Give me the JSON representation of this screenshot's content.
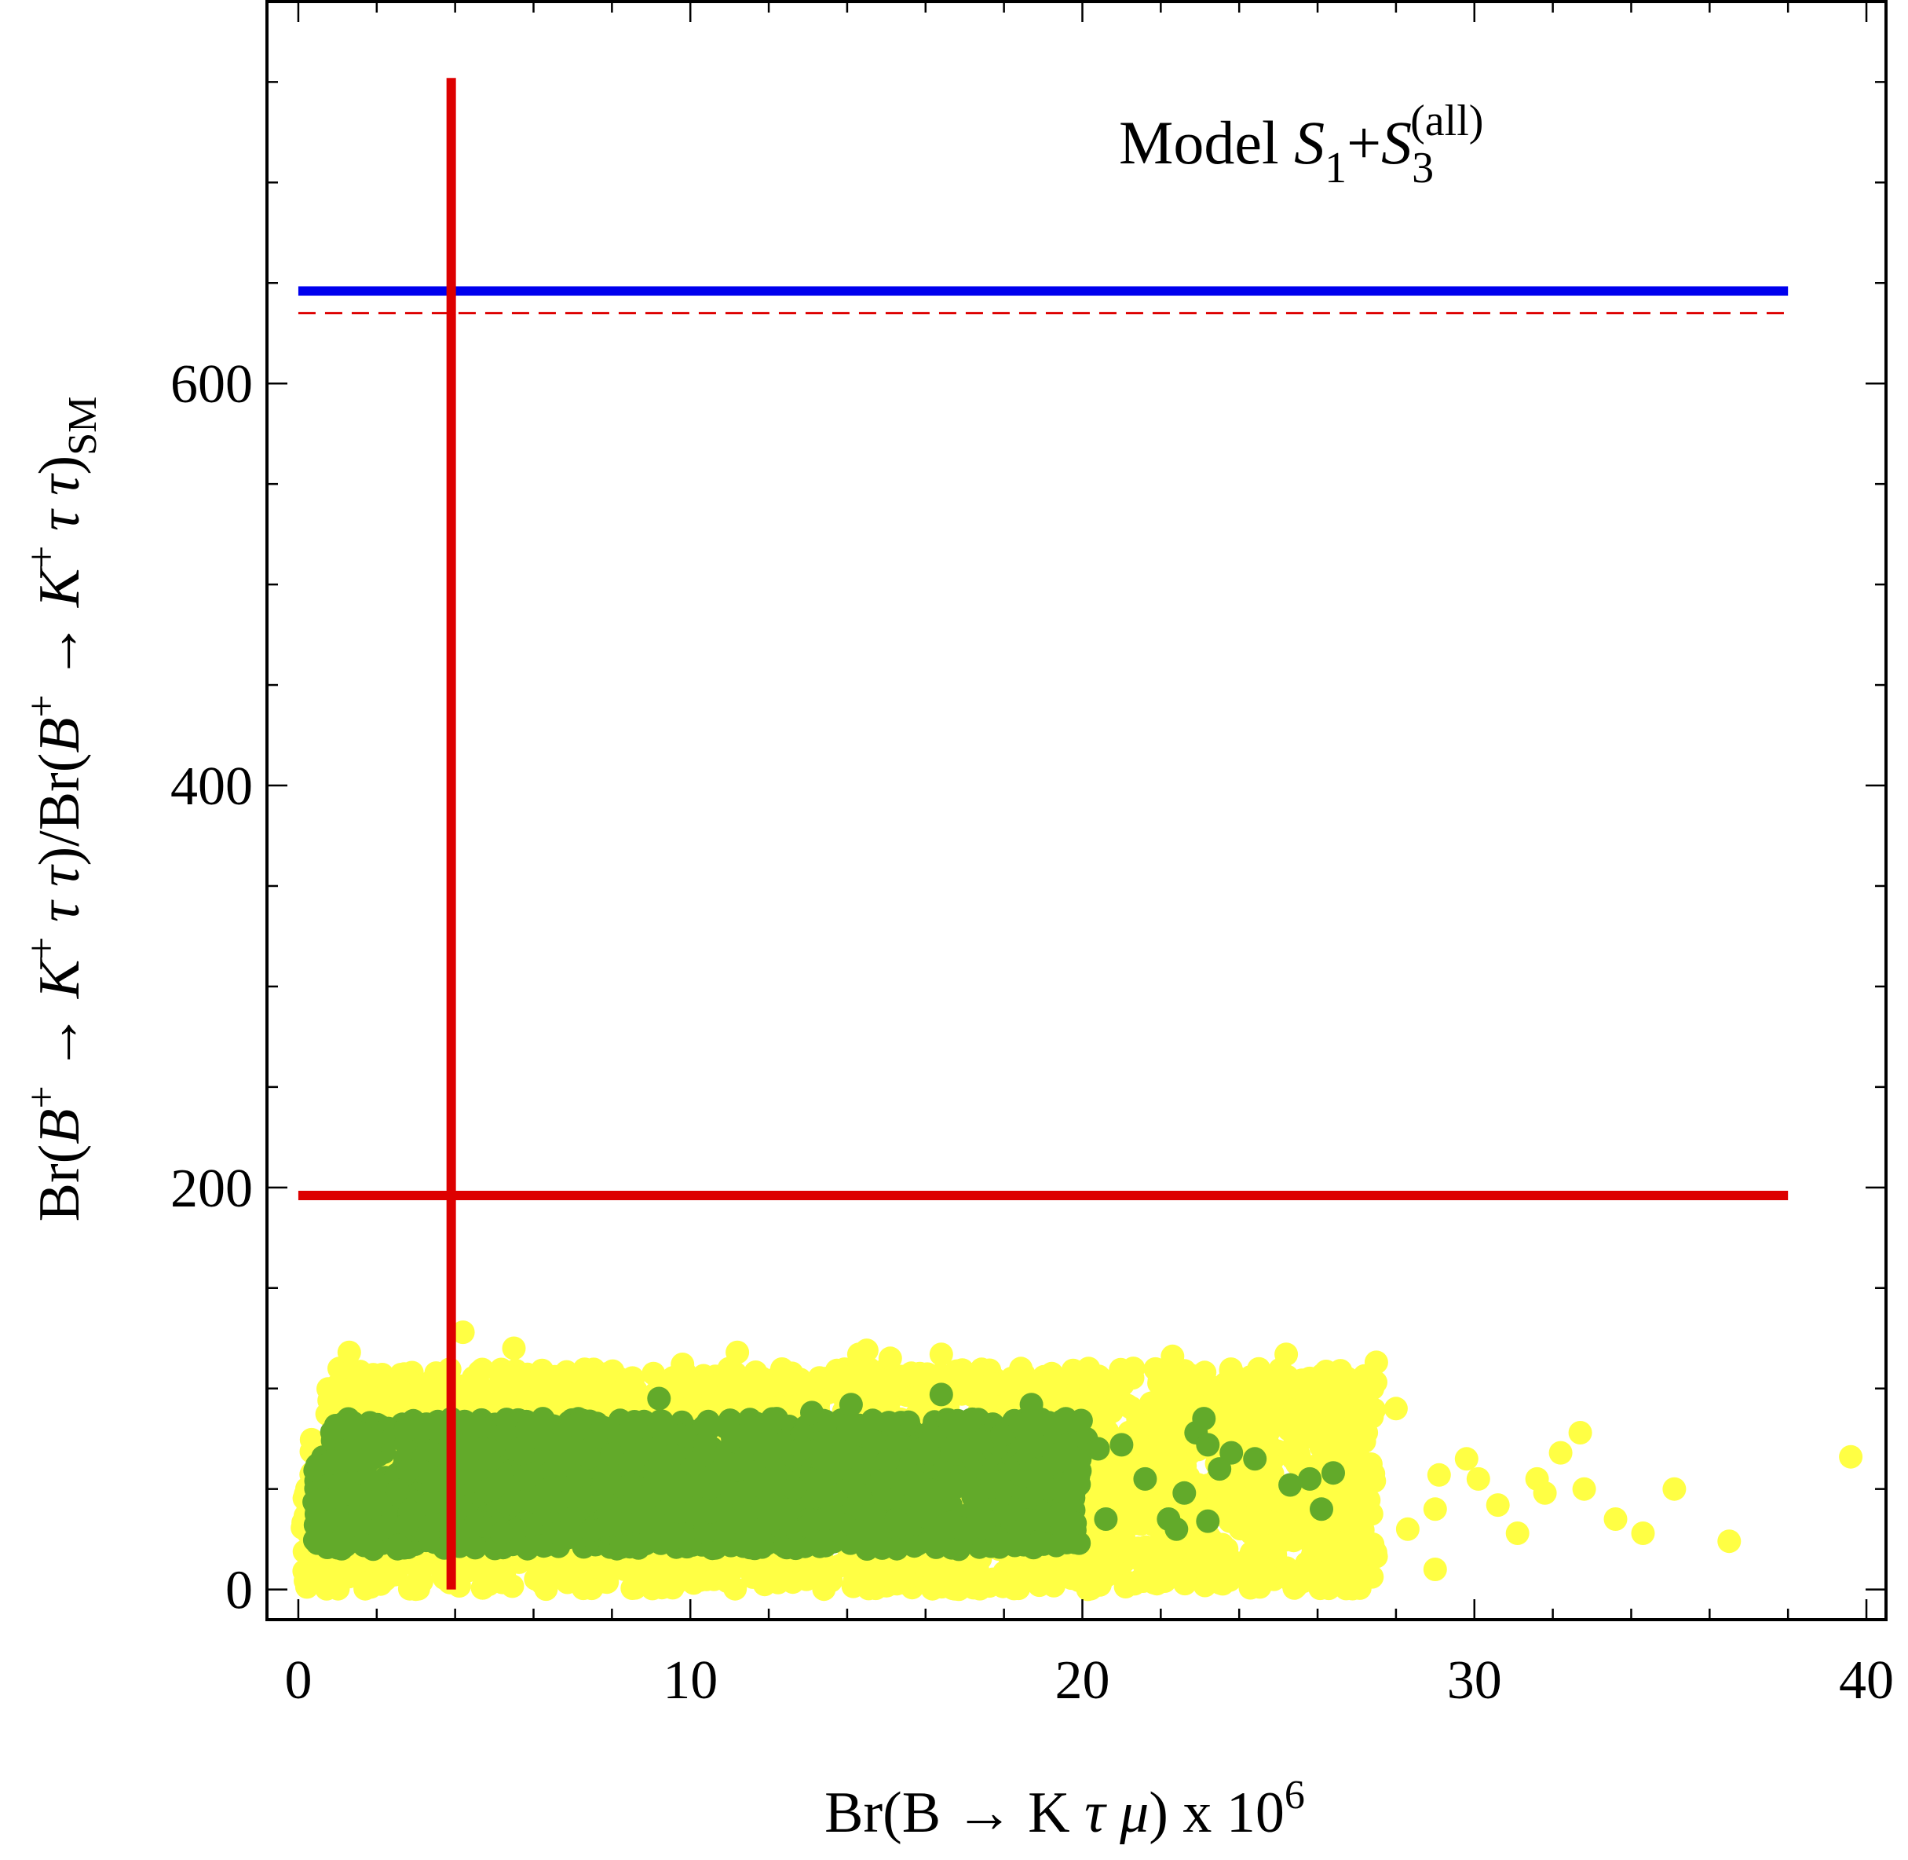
{
  "chart_data": {
    "type": "scatter",
    "title": "",
    "annotation": {
      "prefix": "Model ",
      "s1": "S",
      "s1_sub": "1",
      "plus": "+",
      "s3": "S",
      "s3_sub": "3",
      "s3_sup": "(all)"
    },
    "xlabel": {
      "pre": "Br(B → K ",
      "tau": "τ",
      "mu": "μ",
      "post": ") x 10",
      "exp": "6"
    },
    "ylabel": {
      "p1": "Br(",
      "B1": "B",
      "sup1": "+",
      "p2": " → ",
      "K1": "K",
      "sup2": "+",
      "tt1": " τ τ",
      "p3": ")/Br(",
      "B2": "B",
      "sup3": "+",
      "p4": " → ",
      "K2": "K",
      "sup4": "+",
      "tt2": " τ τ",
      "p5": ")",
      "sub": "SM"
    },
    "xlim": [
      -0.8,
      40.5
    ],
    "ylim": [
      -15,
      790
    ],
    "x_ticks": [
      0,
      10,
      20,
      30,
      40
    ],
    "x_tick_labels": [
      "0",
      "10",
      "20",
      "30",
      "40"
    ],
    "y_ticks": [
      0,
      200,
      400,
      600
    ],
    "y_tick_labels": [
      "0",
      "200",
      "400",
      "600"
    ],
    "x_minor_step": 2,
    "y_minor_step": 50,
    "grid": false,
    "reference_lines": [
      {
        "name": "blue-horizontal-bound",
        "orientation": "horizontal",
        "value": 646,
        "from": 0,
        "to": 38,
        "color": "#0000ee",
        "style": "solid"
      },
      {
        "name": "red-dashed-horizontal-bound",
        "orientation": "horizontal",
        "value": 635,
        "from": 0,
        "to": 38,
        "color": "#dd0000",
        "style": "dashed"
      },
      {
        "name": "red-horizontal-bound",
        "orientation": "horizontal",
        "value": 196,
        "from": 0,
        "to": 38,
        "color": "#dd0000",
        "style": "solid"
      },
      {
        "name": "red-vertical-bound",
        "orientation": "vertical",
        "value": 3.9,
        "from": 0,
        "to": 752,
        "color": "#dd0000",
        "style": "solid"
      }
    ],
    "series": [
      {
        "name": "all points",
        "color": "#ffff44",
        "bulk_region": {
          "x": [
            0.1,
            27.5
          ],
          "y_low": 0,
          "y_high": 110
        },
        "points": [
          [
            1.3,
            118
          ],
          [
            4.2,
            128
          ],
          [
            5.5,
            120
          ],
          [
            9.8,
            112
          ],
          [
            11.2,
            118
          ],
          [
            14.3,
            117
          ],
          [
            14.5,
            119
          ],
          [
            15.1,
            115
          ],
          [
            16.4,
            117
          ],
          [
            18.2,
            105
          ],
          [
            21.3,
            110
          ],
          [
            22.3,
            116
          ],
          [
            23.2,
            102
          ],
          [
            25.2,
            117
          ],
          [
            25.8,
            105
          ],
          [
            27.5,
            113
          ],
          [
            27.4,
            100
          ],
          [
            28.0,
            90
          ],
          [
            29.8,
            65
          ],
          [
            29.1,
            57
          ],
          [
            29.0,
            40
          ],
          [
            30.1,
            55
          ],
          [
            30.6,
            42
          ],
          [
            31.6,
            55
          ],
          [
            31.8,
            48
          ],
          [
            32.2,
            68
          ],
          [
            32.7,
            78
          ],
          [
            32.8,
            50
          ],
          [
            33.6,
            35
          ],
          [
            34.3,
            28
          ],
          [
            35.1,
            50
          ],
          [
            36.5,
            24
          ],
          [
            39.6,
            66
          ],
          [
            28.3,
            30
          ],
          [
            29.0,
            10
          ],
          [
            26.8,
            8
          ],
          [
            27.4,
            18
          ],
          [
            31.1,
            28
          ]
        ]
      },
      {
        "name": "allowed points",
        "color": "#62aa2a",
        "bulk_region": {
          "x": [
            0.4,
            20.0
          ],
          "y_low": 20,
          "y_high": 85
        },
        "points": [
          [
            9.2,
            95
          ],
          [
            12.2,
            85
          ],
          [
            13.1,
            88
          ],
          [
            14.1,
            92
          ],
          [
            16.4,
            97
          ],
          [
            18.7,
            92
          ],
          [
            20.1,
            75
          ],
          [
            20.4,
            70
          ],
          [
            21.0,
            72
          ],
          [
            21.6,
            55
          ],
          [
            22.2,
            35
          ],
          [
            22.6,
            48
          ],
          [
            22.9,
            78
          ],
          [
            23.1,
            85
          ],
          [
            23.2,
            72
          ],
          [
            23.5,
            60
          ],
          [
            23.8,
            68
          ],
          [
            24.4,
            65
          ],
          [
            25.3,
            52
          ],
          [
            25.8,
            55
          ],
          [
            26.1,
            40
          ],
          [
            26.4,
            58
          ],
          [
            20.6,
            35
          ],
          [
            22.4,
            30
          ],
          [
            23.2,
            34
          ]
        ]
      }
    ]
  }
}
